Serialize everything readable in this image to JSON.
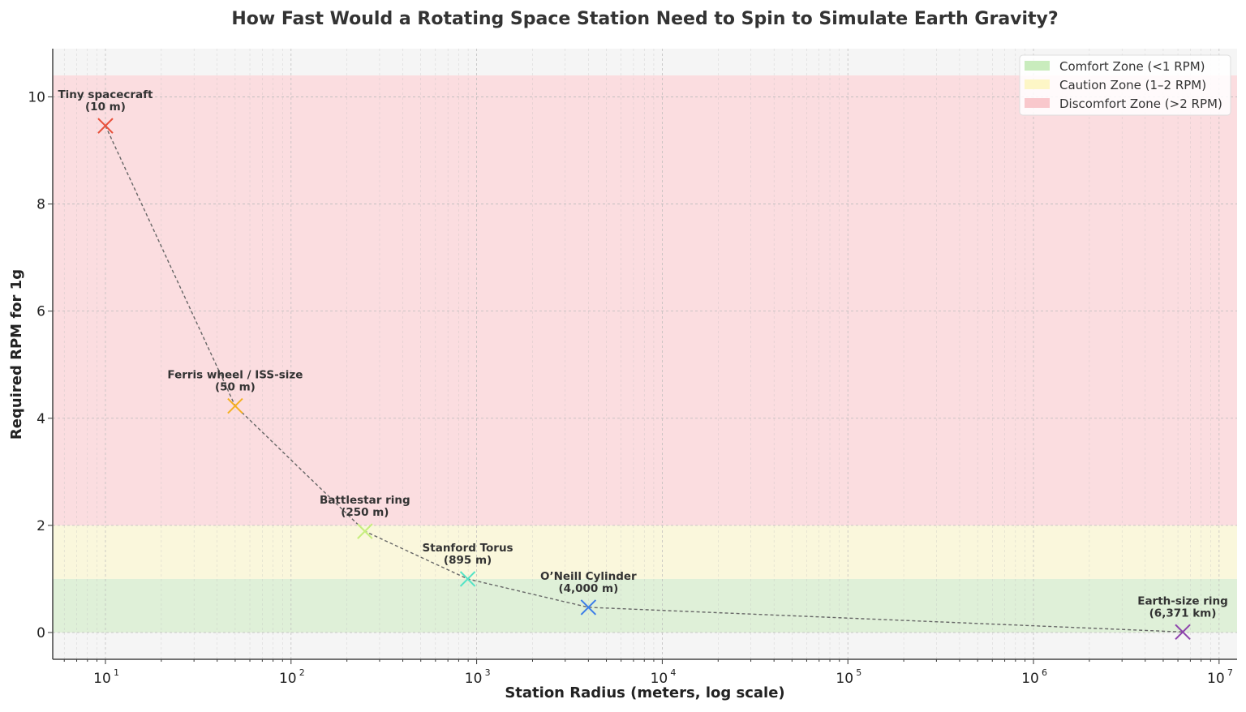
{
  "chart_data": {
    "type": "scatter",
    "title": "How Fast Would a Rotating Space Station Need to Spin to Simulate Earth Gravity?",
    "xlabel": "Station Radius (meters, log scale)",
    "ylabel": "Required RPM for 1g",
    "xscale": "log",
    "xlim": [
      5.2,
      12500000
    ],
    "ylim": [
      -0.5,
      10.9
    ],
    "xticks": [
      {
        "value": 10,
        "base": "10",
        "exp": "1"
      },
      {
        "value": 100,
        "base": "10",
        "exp": "2"
      },
      {
        "value": 1000,
        "base": "10",
        "exp": "3"
      },
      {
        "value": 10000,
        "base": "10",
        "exp": "4"
      },
      {
        "value": 100000,
        "base": "10",
        "exp": "5"
      },
      {
        "value": 1000000,
        "base": "10",
        "exp": "6"
      },
      {
        "value": 10000000,
        "base": "10",
        "exp": "7"
      }
    ],
    "yticks": [
      "0",
      "2",
      "4",
      "6",
      "8",
      "10"
    ],
    "grid": true,
    "legend_position": "top-right",
    "zones": [
      {
        "name": "Comfort Zone (<1 RPM)",
        "from": 0,
        "to": 1,
        "color": "#dff0d8",
        "legend_color": "#c9ecbd"
      },
      {
        "name": "Caution Zone (1–2 RPM)",
        "from": 1,
        "to": 2,
        "color": "#faf7dc",
        "legend_color": "#fdf6c6"
      },
      {
        "name": "Discomfort Zone (>2 RPM)",
        "from": 2,
        "to": 10.4,
        "color": "#fbdde0",
        "legend_color": "#f9c8cc"
      }
    ],
    "points": [
      {
        "label": "Tiny spacecraft",
        "sub": "(10 m)",
        "x": 10,
        "y": 9.46,
        "color": "#e8503a"
      },
      {
        "label": "Ferris wheel / ISS-size",
        "sub": "(50 m)",
        "x": 50,
        "y": 4.23,
        "color": "#f5b021"
      },
      {
        "label": "Battlestar ring",
        "sub": "(250 m)",
        "x": 250,
        "y": 1.89,
        "color": "#c6ee7e"
      },
      {
        "label": "Stanford Torus",
        "sub": "(895 m)",
        "x": 895,
        "y": 1.0,
        "color": "#52e3c6"
      },
      {
        "label": "O’Neill Cylinder",
        "sub": "(4,000 m)",
        "x": 4000,
        "y": 0.47,
        "color": "#3b7de8"
      },
      {
        "label": "Earth-size ring",
        "sub": "(6,371 km)",
        "x": 6371000,
        "y": 0.01,
        "color": "#8e44ad"
      }
    ]
  }
}
